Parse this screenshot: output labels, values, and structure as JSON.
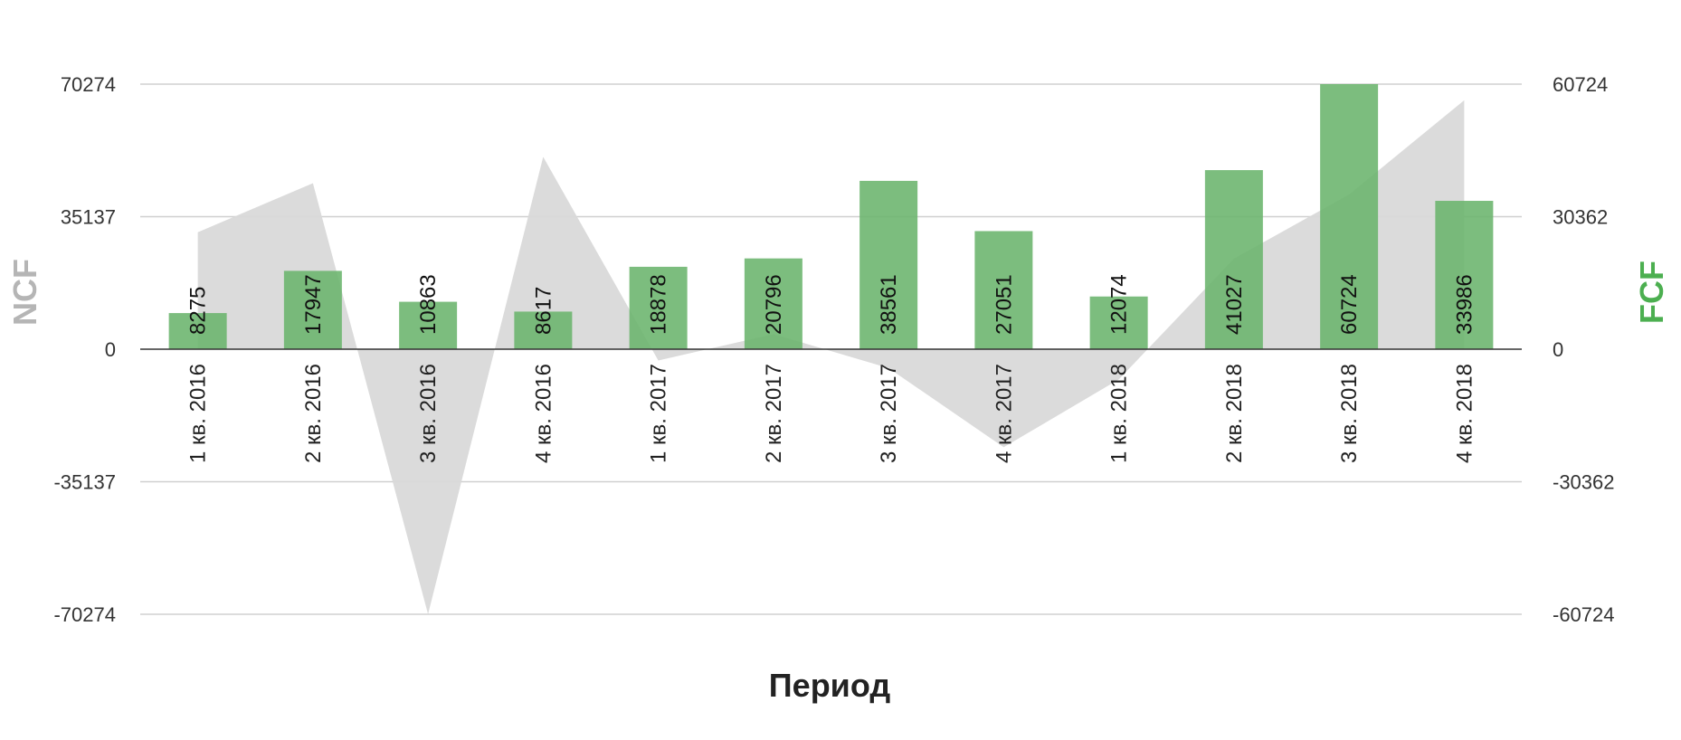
{
  "chart_data": {
    "type": "bar",
    "xlabel": "Период",
    "ylabel_left": "NCF",
    "ylabel_right": "FCF",
    "categories": [
      "1 кв. 2016",
      "2 кв. 2016",
      "3 кв. 2016",
      "4 кв. 2016",
      "1 кв. 2017",
      "2 кв. 2017",
      "3 кв. 2017",
      "4 кв. 2017",
      "1 кв. 2018",
      "2 кв. 2018",
      "3 кв. 2018",
      "4 кв. 2018"
    ],
    "left_axis": {
      "ylim": [
        -70274,
        70274
      ],
      "ticks": [
        "70274",
        "35137",
        "0",
        "-35137",
        "-70274"
      ]
    },
    "right_axis": {
      "ylim": [
        -60724,
        60724
      ],
      "ticks": [
        "60724",
        "30362",
        "0",
        "-30362",
        "-60724"
      ]
    },
    "grid": true,
    "series": [
      {
        "name": "FCF",
        "type": "bar",
        "axis": "right",
        "color": "#6ab46c",
        "values": [
          8275,
          17947,
          10863,
          8617,
          18878,
          20796,
          38561,
          27051,
          12074,
          41027,
          60724,
          33986
        ],
        "labels": [
          "8275",
          "17947",
          "10863",
          "8617",
          "18878",
          "20796",
          "38561",
          "27051",
          "12074",
          "41027",
          "60724",
          "33986"
        ]
      },
      {
        "name": "NCF",
        "type": "area",
        "axis": "left",
        "color": "#d9d9d9",
        "values": [
          31000,
          44000,
          -70274,
          51000,
          -3000,
          4000,
          -5000,
          -26000,
          -8000,
          24000,
          41000,
          66000
        ]
      }
    ]
  }
}
